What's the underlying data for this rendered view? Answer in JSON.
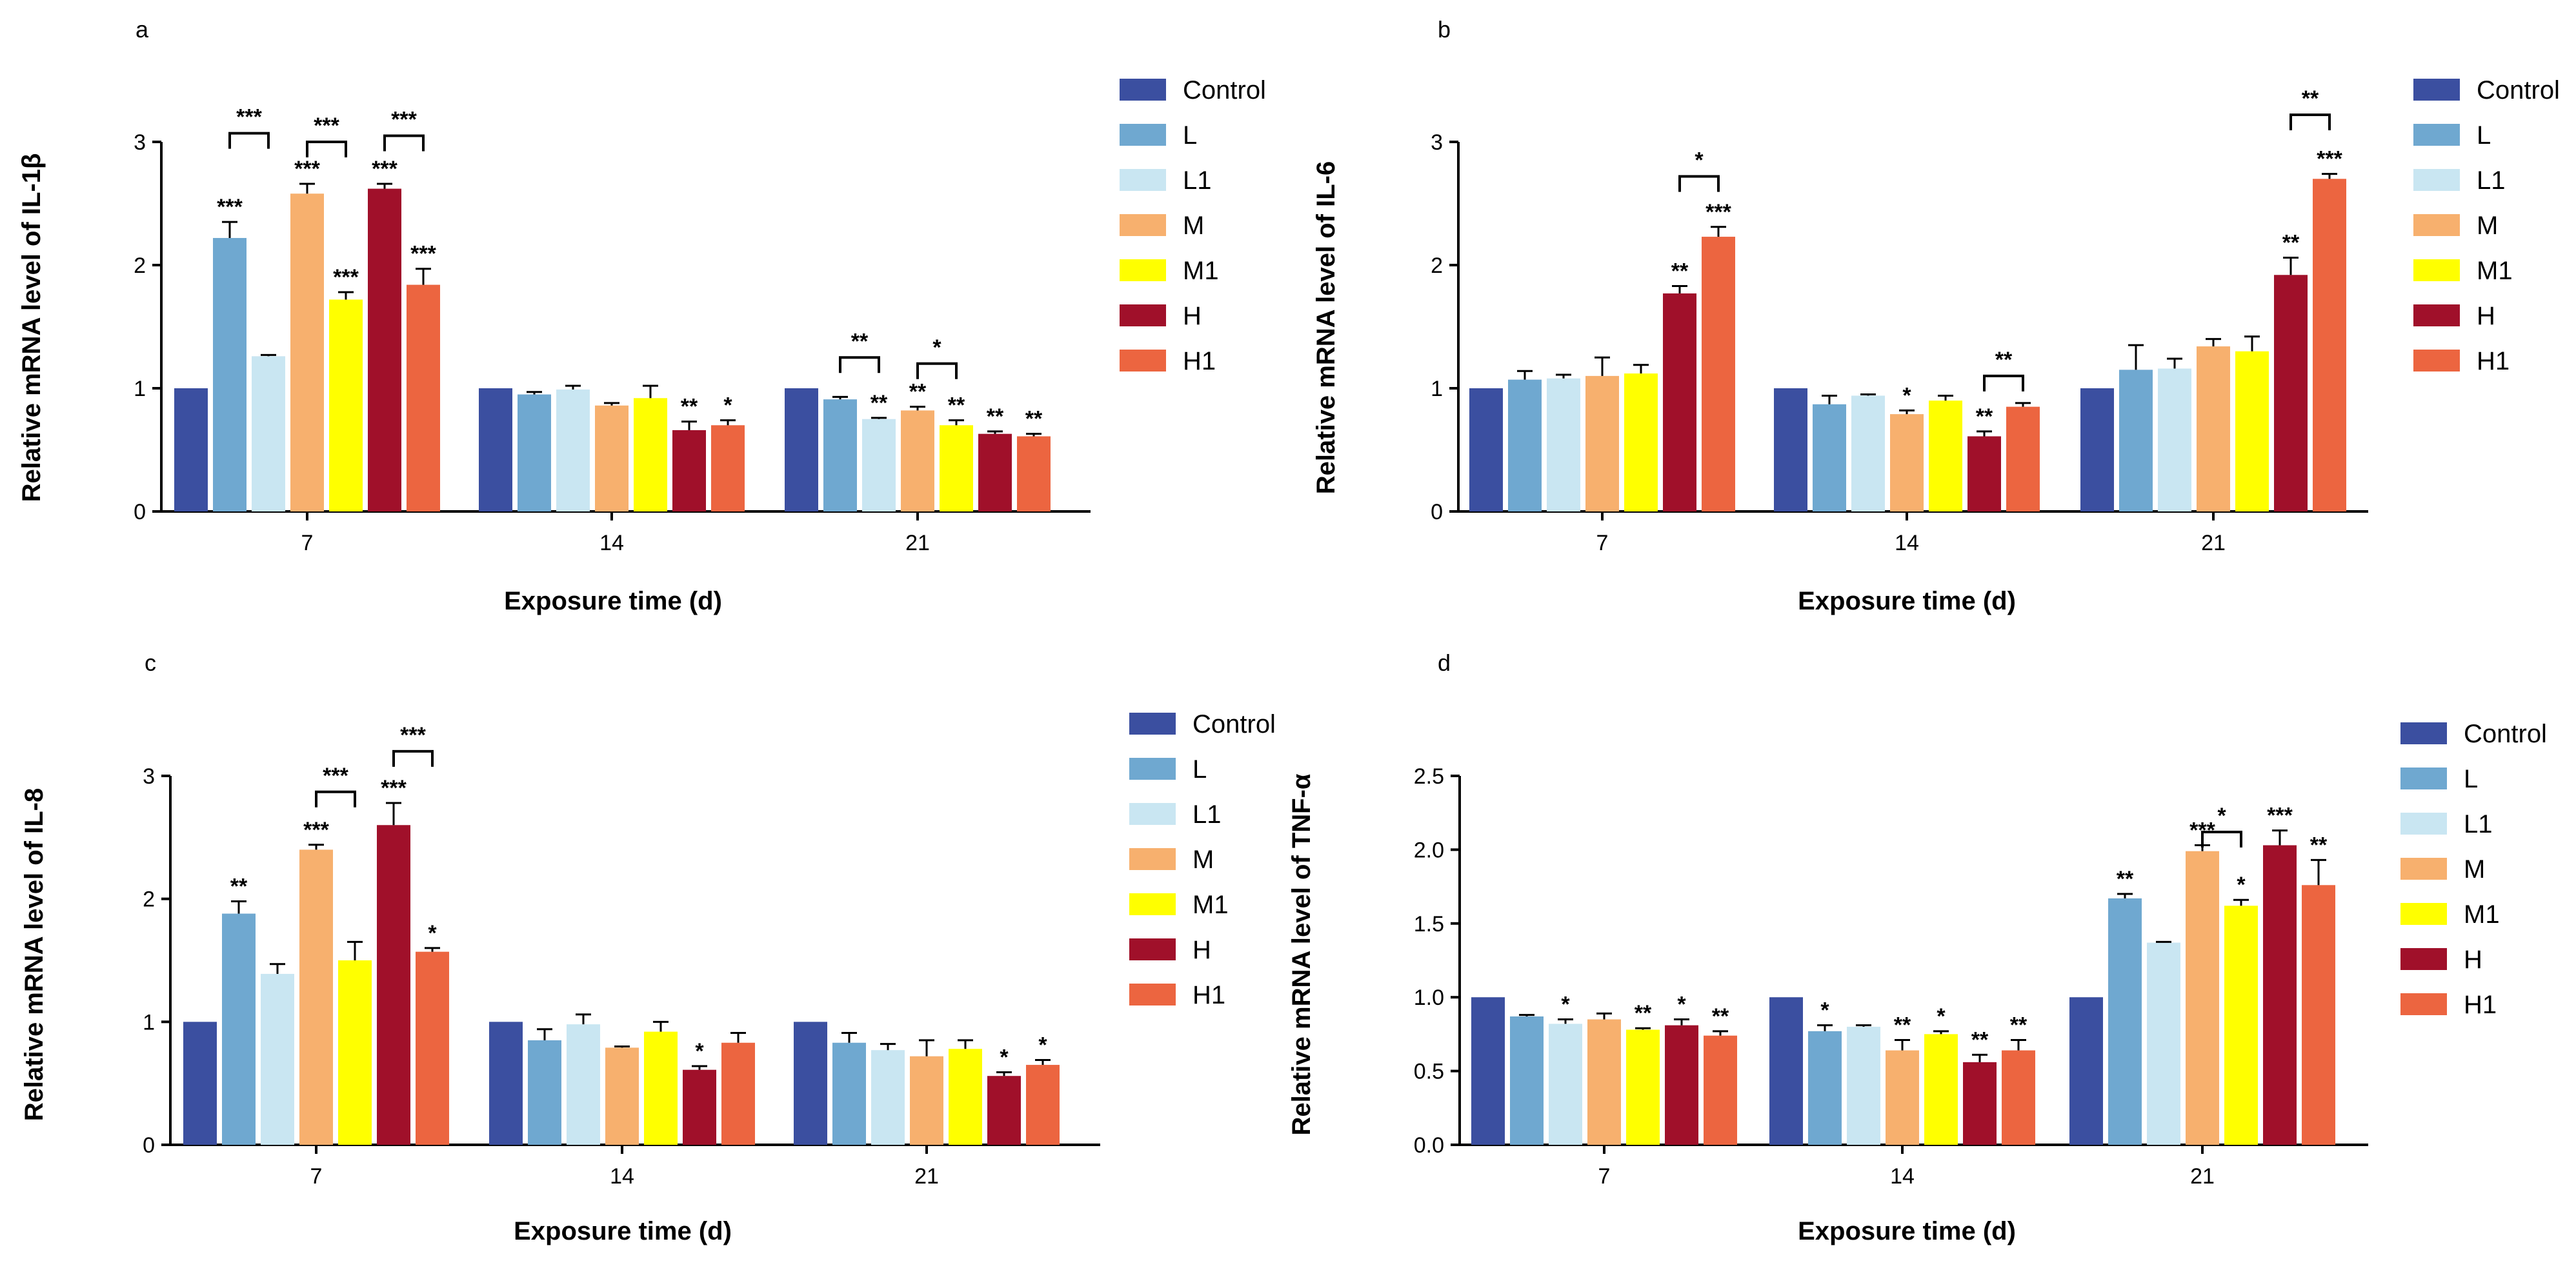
{
  "figure": {
    "legend": [
      {
        "name": "Control",
        "color": "#3b4fa0"
      },
      {
        "name": "L",
        "color": "#6fa8d0"
      },
      {
        "name": "L1",
        "color": "#c9e6f2"
      },
      {
        "name": "M",
        "color": "#f7b06e"
      },
      {
        "name": "M1",
        "color": "#ffff00"
      },
      {
        "name": "H",
        "color": "#a0102a"
      },
      {
        "name": "H1",
        "color": "#ec6540"
      }
    ]
  },
  "chart_data": [
    {
      "panel": "a",
      "type": "bar",
      "ylabel": "Relative mRNA level of IL-1β",
      "xlabel": "Exposure time (d)",
      "categories": [
        "7",
        "14",
        "21"
      ],
      "ylim": [
        0,
        3
      ],
      "yticks": [
        "0",
        "1",
        "2",
        "3"
      ],
      "series": [
        {
          "name": "Control",
          "values": [
            1.0,
            1.0,
            1.0
          ],
          "errors": [
            0,
            0,
            0
          ],
          "sig": [
            "",
            "",
            ""
          ]
        },
        {
          "name": "L",
          "values": [
            2.22,
            0.95,
            0.91
          ],
          "errors": [
            0.13,
            0.02,
            0.02
          ],
          "sig": [
            "***",
            "",
            ""
          ]
        },
        {
          "name": "L1",
          "values": [
            1.26,
            0.99,
            0.75
          ],
          "errors": [
            0.01,
            0.03,
            0.01
          ],
          "sig": [
            "",
            "",
            "**"
          ]
        },
        {
          "name": "M",
          "values": [
            2.58,
            0.86,
            0.82
          ],
          "errors": [
            0.08,
            0.02,
            0.03
          ],
          "sig": [
            "***",
            "",
            "**"
          ]
        },
        {
          "name": "M1",
          "values": [
            1.72,
            0.92,
            0.7
          ],
          "errors": [
            0.06,
            0.1,
            0.04
          ],
          "sig": [
            "***",
            "",
            "**"
          ]
        },
        {
          "name": "H",
          "values": [
            2.62,
            0.66,
            0.63
          ],
          "errors": [
            0.04,
            0.07,
            0.02
          ],
          "sig": [
            "***",
            "**",
            "**"
          ]
        },
        {
          "name": "H1",
          "values": [
            1.84,
            0.7,
            0.61
          ],
          "errors": [
            0.13,
            0.04,
            0.02
          ],
          "sig": [
            "***",
            "*",
            "**"
          ]
        }
      ],
      "brackets": [
        {
          "category": 0,
          "from": "L",
          "to": "L1",
          "level": 3.07,
          "label": "***"
        },
        {
          "category": 0,
          "from": "M",
          "to": "M1",
          "level": 3.0,
          "label": "***"
        },
        {
          "category": 0,
          "from": "H",
          "to": "H1",
          "level": 3.05,
          "label": "***"
        },
        {
          "category": 2,
          "from": "L",
          "to": "L1",
          "level": 1.25,
          "label": "**"
        },
        {
          "category": 2,
          "from": "M",
          "to": "M1",
          "level": 1.2,
          "label": "*"
        }
      ]
    },
    {
      "panel": "b",
      "type": "bar",
      "ylabel": "Relative mRNA level of IL-6",
      "xlabel": "Exposure time (d)",
      "categories": [
        "7",
        "14",
        "21"
      ],
      "ylim": [
        0,
        3
      ],
      "yticks": [
        "0",
        "1",
        "2",
        "3"
      ],
      "series": [
        {
          "name": "Control",
          "values": [
            1.0,
            1.0,
            1.0
          ],
          "errors": [
            0,
            0,
            0
          ],
          "sig": [
            "",
            "",
            ""
          ]
        },
        {
          "name": "L",
          "values": [
            1.07,
            0.87,
            1.15
          ],
          "errors": [
            0.07,
            0.07,
            0.2
          ],
          "sig": [
            "",
            "",
            ""
          ]
        },
        {
          "name": "L1",
          "values": [
            1.08,
            0.94,
            1.16
          ],
          "errors": [
            0.03,
            0.01,
            0.08
          ],
          "sig": [
            "",
            "",
            ""
          ]
        },
        {
          "name": "M",
          "values": [
            1.1,
            0.79,
            1.34
          ],
          "errors": [
            0.15,
            0.03,
            0.06
          ],
          "sig": [
            "",
            "*",
            ""
          ]
        },
        {
          "name": "M1",
          "values": [
            1.12,
            0.9,
            1.3
          ],
          "errors": [
            0.07,
            0.04,
            0.12
          ],
          "sig": [
            "",
            "",
            ""
          ]
        },
        {
          "name": "H",
          "values": [
            1.77,
            0.61,
            1.92
          ],
          "errors": [
            0.06,
            0.04,
            0.14
          ],
          "sig": [
            "**",
            "**",
            "**"
          ]
        },
        {
          "name": "H1",
          "values": [
            2.23,
            0.85,
            2.7
          ],
          "errors": [
            0.08,
            0.03,
            0.04
          ],
          "sig": [
            "***",
            "",
            "***"
          ]
        }
      ],
      "brackets": [
        {
          "category": 0,
          "from": "H",
          "to": "H1",
          "level": 2.72,
          "label": "*"
        },
        {
          "category": 1,
          "from": "H",
          "to": "H1",
          "level": 1.1,
          "label": "**"
        },
        {
          "category": 2,
          "from": "H",
          "to": "H1",
          "level": 3.22,
          "label": "**"
        }
      ]
    },
    {
      "panel": "c",
      "type": "bar",
      "ylabel": "Relative mRNA level of IL-8",
      "xlabel": "Exposure time (d)",
      "categories": [
        "7",
        "14",
        "21"
      ],
      "ylim": [
        0,
        3
      ],
      "yticks": [
        "0",
        "1",
        "2",
        "3"
      ],
      "series": [
        {
          "name": "Control",
          "values": [
            1.0,
            1.0,
            1.0
          ],
          "errors": [
            0,
            0,
            0
          ],
          "sig": [
            "",
            "",
            ""
          ]
        },
        {
          "name": "L",
          "values": [
            1.88,
            0.85,
            0.83
          ],
          "errors": [
            0.1,
            0.09,
            0.08
          ],
          "sig": [
            "**",
            "",
            ""
          ]
        },
        {
          "name": "L1",
          "values": [
            1.39,
            0.98,
            0.77
          ],
          "errors": [
            0.08,
            0.08,
            0.05
          ],
          "sig": [
            "",
            "",
            ""
          ]
        },
        {
          "name": "M",
          "values": [
            2.4,
            0.79,
            0.72
          ],
          "errors": [
            0.04,
            0.01,
            0.13
          ],
          "sig": [
            "***",
            "",
            ""
          ]
        },
        {
          "name": "M1",
          "values": [
            1.5,
            0.92,
            0.78
          ],
          "errors": [
            0.15,
            0.08,
            0.07
          ],
          "sig": [
            "",
            "",
            ""
          ]
        },
        {
          "name": "H",
          "values": [
            2.6,
            0.61,
            0.56
          ],
          "errors": [
            0.18,
            0.03,
            0.03
          ],
          "sig": [
            "***",
            "*",
            "*"
          ]
        },
        {
          "name": "H1",
          "values": [
            1.57,
            0.83,
            0.65
          ],
          "errors": [
            0.03,
            0.08,
            0.04
          ],
          "sig": [
            "*",
            "",
            "*"
          ]
        }
      ],
      "brackets": [
        {
          "category": 0,
          "from": "M",
          "to": "M1",
          "level": 2.87,
          "label": "***"
        },
        {
          "category": 0,
          "from": "H",
          "to": "H1",
          "level": 3.2,
          "label": "***"
        }
      ]
    },
    {
      "panel": "d",
      "type": "bar",
      "ylabel": "Relative mRNA level of TNF-α",
      "xlabel": "Exposure time (d)",
      "categories": [
        "7",
        "14",
        "21"
      ],
      "ylim": [
        0,
        2.5
      ],
      "yticks": [
        "0.0",
        "0.5",
        "1.0",
        "1.5",
        "2.0",
        "2.5"
      ],
      "series": [
        {
          "name": "Control",
          "values": [
            1.0,
            1.0,
            1.0
          ],
          "errors": [
            0,
            0,
            0
          ],
          "sig": [
            "",
            "",
            ""
          ]
        },
        {
          "name": "L",
          "values": [
            0.87,
            0.77,
            1.67
          ],
          "errors": [
            0.01,
            0.04,
            0.03
          ],
          "sig": [
            "",
            "*",
            "**"
          ]
        },
        {
          "name": "L1",
          "values": [
            0.82,
            0.8,
            1.37
          ],
          "errors": [
            0.03,
            0.01,
            0.005
          ],
          "sig": [
            "*",
            "",
            ""
          ]
        },
        {
          "name": "M",
          "values": [
            0.85,
            0.64,
            1.99
          ],
          "errors": [
            0.04,
            0.07,
            0.04
          ],
          "sig": [
            "",
            "**",
            "***"
          ]
        },
        {
          "name": "M1",
          "values": [
            0.78,
            0.75,
            1.62
          ],
          "errors": [
            0.01,
            0.02,
            0.04
          ],
          "sig": [
            "**",
            "*",
            "*"
          ]
        },
        {
          "name": "H",
          "values": [
            0.81,
            0.56,
            2.03
          ],
          "errors": [
            0.04,
            0.05,
            0.1
          ],
          "sig": [
            "*",
            "**",
            "***"
          ]
        },
        {
          "name": "H1",
          "values": [
            0.74,
            0.64,
            1.76
          ],
          "errors": [
            0.03,
            0.07,
            0.17
          ],
          "sig": [
            "**",
            "**",
            "**"
          ]
        }
      ],
      "brackets": [
        {
          "category": 2,
          "from": "M",
          "to": "M1",
          "level": 2.12,
          "label": "*"
        }
      ]
    }
  ]
}
